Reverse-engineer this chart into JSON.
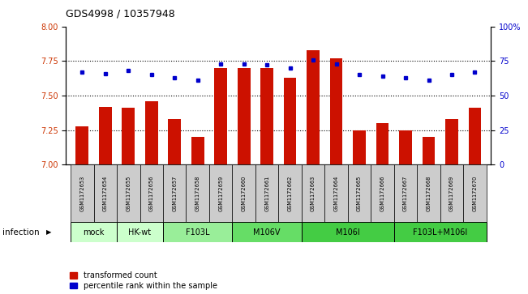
{
  "title": "GDS4998 / 10357948",
  "samples": [
    "GSM1172653",
    "GSM1172654",
    "GSM1172655",
    "GSM1172656",
    "GSM1172657",
    "GSM1172658",
    "GSM1172659",
    "GSM1172660",
    "GSM1172661",
    "GSM1172662",
    "GSM1172663",
    "GSM1172664",
    "GSM1172665",
    "GSM1172666",
    "GSM1172667",
    "GSM1172668",
    "GSM1172669",
    "GSM1172670"
  ],
  "transformed_count": [
    7.28,
    7.42,
    7.41,
    7.46,
    7.33,
    7.2,
    7.7,
    7.7,
    7.7,
    7.63,
    7.83,
    7.77,
    7.25,
    7.3,
    7.25,
    7.2,
    7.33,
    7.41
  ],
  "percentile_rank": [
    67,
    66,
    68,
    65,
    63,
    61,
    73,
    73,
    72,
    70,
    76,
    73,
    65,
    64,
    63,
    61,
    65,
    67
  ],
  "groups": [
    {
      "label": "mock",
      "color": "#ccffcc",
      "start": 0,
      "end": 2
    },
    {
      "label": "HK-wt",
      "color": "#ccffcc",
      "start": 2,
      "end": 4
    },
    {
      "label": "F103L",
      "color": "#99ee99",
      "start": 4,
      "end": 7
    },
    {
      "label": "M106V",
      "color": "#66dd66",
      "start": 7,
      "end": 10
    },
    {
      "label": "M106I",
      "color": "#44cc44",
      "start": 10,
      "end": 14
    },
    {
      "label": "F103L+M106I",
      "color": "#44cc44",
      "start": 14,
      "end": 18
    }
  ],
  "ylim_left": [
    7.0,
    8.0
  ],
  "ylim_right": [
    0,
    100
  ],
  "bar_color": "#cc1100",
  "dot_color": "#0000cc",
  "bar_width": 0.55,
  "background_color": "#ffffff",
  "plot_bg_color": "#ffffff",
  "infection_label": "infection",
  "left_axis_color": "#cc3300",
  "right_axis_color": "#0000cc",
  "sample_box_color": "#cccccc",
  "grid_yticks": [
    7.25,
    7.5,
    7.75
  ],
  "left_yticks": [
    7.0,
    7.25,
    7.5,
    7.75,
    8.0
  ],
  "right_yticks": [
    0,
    25,
    50,
    75,
    100
  ],
  "right_yticklabels": [
    "0",
    "25",
    "50",
    "75",
    "100%"
  ]
}
